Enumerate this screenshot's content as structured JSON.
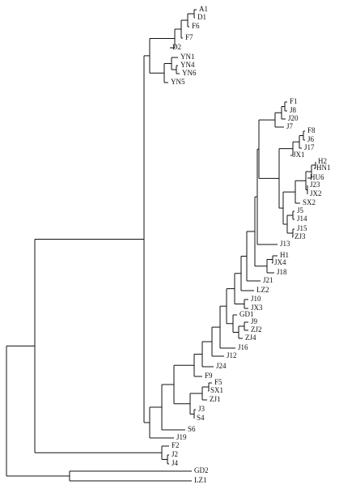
{
  "leaves": [
    "A1",
    "D1",
    "F6",
    "F7",
    "D2",
    "YN1",
    "YN4",
    "YN6",
    "YN5",
    "F1",
    "J8",
    "J20",
    "J7",
    "F8",
    "J6",
    "J17",
    "JX1",
    "H2",
    "HN1",
    "HU6",
    "J23",
    "JX2",
    "SX2",
    "J5",
    "J14",
    "J15",
    "ZJ3",
    "J13",
    "H1",
    "JX4",
    "J18",
    "J21",
    "LZ2",
    "J10",
    "JX3",
    "GD1",
    "J9",
    "ZJ2",
    "ZJ4",
    "J16",
    "J12",
    "J24",
    "F9",
    "F5",
    "SX1",
    "ZJ1",
    "J3",
    "S4",
    "S6",
    "J19",
    "F2",
    "J2",
    "J4",
    "GD2",
    "LZ1"
  ]
}
